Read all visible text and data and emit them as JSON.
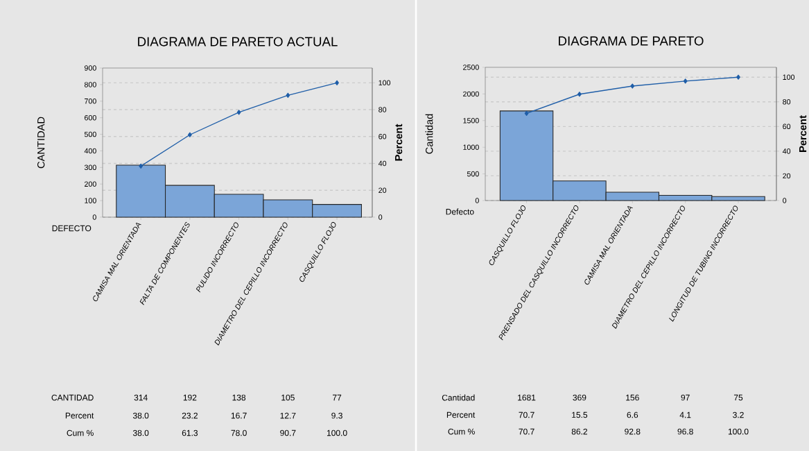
{
  "chart_data": [
    {
      "type": "bar",
      "title": "DIAGRAMA DE PARETO ACTUAL",
      "xlabel": "DEFECTO",
      "ylabel": "CANTIDAD",
      "y2label": "Percent",
      "categories": [
        "CAMISA MAL ORIENTADA",
        "FALTA DE COMPONENTES",
        "PULIDO INCORRECTO",
        "DIAMETRO DEL CEPILLO INCORRECTO",
        "CASQUILLO FLOJO"
      ],
      "series": [
        {
          "color": "#7ba5d8",
          "values": [
            314,
            192,
            138,
            105,
            77
          ]
        },
        {
          "type": "line",
          "axis": "y2",
          "color": "#1f5ea8",
          "values": [
            38.0,
            61.3,
            78.0,
            90.7,
            100.0
          ]
        }
      ],
      "ylim": [
        0,
        900
      ],
      "yticks": [
        0,
        100,
        200,
        300,
        400,
        500,
        600,
        700,
        800,
        900
      ],
      "y2lim": [
        0,
        111
      ],
      "y2ticks": [
        0,
        20,
        40,
        60,
        80,
        100
      ],
      "grid": true,
      "marker": "diamond",
      "annotations": [
        "CANTIDAD",
        "314",
        "192",
        "138",
        "105",
        "77",
        "Percent",
        "38.0",
        "23.2",
        "16.7",
        "12.7",
        "9.3",
        "Cum %",
        "38.0",
        "61.3",
        "78.0",
        "90.7",
        "100.0"
      ]
    },
    {
      "type": "bar",
      "title": "DIAGRAMA DE PARETO",
      "xlabel": "Defecto",
      "ylabel": "Cantidad",
      "y2label": "Percent",
      "categories": [
        "CASQUILLO FLOJO",
        "PRENSADO DEL CASQUILLO INCORRECTO",
        "CAMISA MAL ORIENTADA",
        "DIAMETRO DEL CEPILLO INCORRECTO",
        "LONGITUD DE TUBING INCORRECTO"
      ],
      "series": [
        {
          "color": "#7ba5d8",
          "values": [
            1681,
            369,
            156,
            97,
            75
          ]
        },
        {
          "type": "line",
          "axis": "y2",
          "color": "#1f5ea8",
          "values": [
            70.7,
            86.2,
            92.8,
            96.8,
            100.0
          ]
        }
      ],
      "ylim": [
        0,
        2500
      ],
      "yticks": [
        0,
        500,
        1000,
        1500,
        2000,
        2500
      ],
      "y2lim": [
        0,
        108
      ],
      "y2ticks": [
        0,
        20,
        40,
        60,
        80,
        100
      ],
      "grid": true,
      "marker": "diamond",
      "annotations": [
        "Cantidad",
        "1681",
        "369",
        "156",
        "97",
        "75",
        "Percent",
        "70.7",
        "15.5",
        "6.6",
        "4.1",
        "3.2",
        "Cum %",
        "70.7",
        "86.2",
        "92.8",
        "96.8",
        "100.0"
      ]
    }
  ]
}
